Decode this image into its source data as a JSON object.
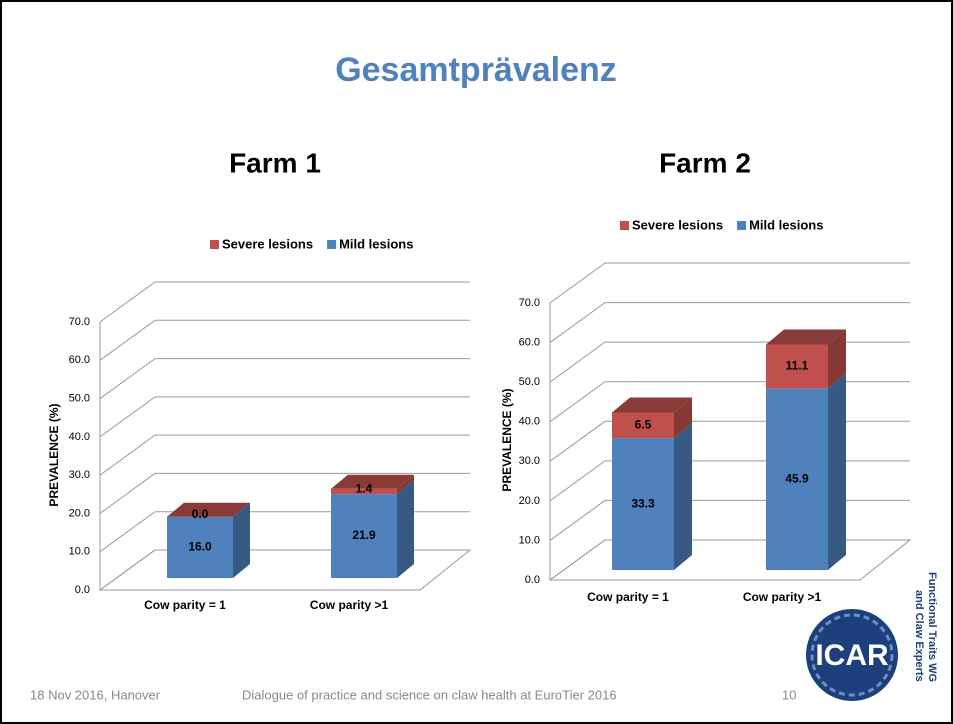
{
  "slide": {
    "title": "Gesamtprävalenz",
    "footer": {
      "date": "18 Nov 2016, Hanover",
      "event": "Dialogue of practice and science on claw health at EuroTier 2016",
      "page": "10"
    },
    "logo": {
      "text": "ICAR",
      "caption": [
        "Functional Traits WG",
        "and Claw Experts"
      ]
    }
  },
  "chart_data": [
    {
      "type": "bar",
      "stacked": true,
      "three_d": true,
      "title": "Farm 1",
      "ylabel": "PREVALENCE (%)",
      "categories": [
        "Cow parity = 1",
        "Cow parity >1"
      ],
      "series": [
        {
          "name": "Mild lesions",
          "color": "#4f81bd",
          "values": [
            16.0,
            21.9
          ],
          "value_labels": [
            "16.0",
            "21.9"
          ]
        },
        {
          "name": "Severe lesions",
          "color": "#c0504d",
          "values": [
            0.0,
            1.4
          ],
          "value_labels": [
            "0.0",
            "1.4"
          ]
        }
      ],
      "ylim": [
        0,
        70
      ],
      "yticks": [
        {
          "value": 0,
          "label": "0.0"
        },
        {
          "value": 10,
          "label": "10.0"
        },
        {
          "value": 20,
          "label": "20.0"
        },
        {
          "value": 30,
          "label": "30.0"
        },
        {
          "value": 40,
          "label": "40.0"
        },
        {
          "value": 50,
          "label": "50.0"
        },
        {
          "value": 60,
          "label": "60.0"
        },
        {
          "value": 70,
          "label": "70.0"
        }
      ],
      "grid": true,
      "legend": "top"
    },
    {
      "type": "bar",
      "stacked": true,
      "three_d": true,
      "title": "Farm 2",
      "ylabel": "PREVALENCE (%)",
      "categories": [
        "Cow parity = 1",
        "Cow parity >1"
      ],
      "series": [
        {
          "name": "Mild lesions",
          "color": "#4f81bd",
          "values": [
            33.3,
            45.9
          ],
          "value_labels": [
            "33.3",
            "45.9"
          ]
        },
        {
          "name": "Severe lesions",
          "color": "#c0504d",
          "values": [
            6.5,
            11.1
          ],
          "value_labels": [
            "6.5",
            "11.1"
          ]
        }
      ],
      "ylim": [
        0,
        70
      ],
      "yticks": [
        {
          "value": 0,
          "label": "0.0"
        },
        {
          "value": 10,
          "label": "10.0"
        },
        {
          "value": 20,
          "label": "20.0"
        },
        {
          "value": 30,
          "label": "30.0"
        },
        {
          "value": 40,
          "label": "40.0"
        },
        {
          "value": 50,
          "label": "50.0"
        },
        {
          "value": 60,
          "label": "60.0"
        },
        {
          "value": 70,
          "label": "70.0"
        }
      ],
      "grid": true,
      "legend": "top"
    }
  ]
}
